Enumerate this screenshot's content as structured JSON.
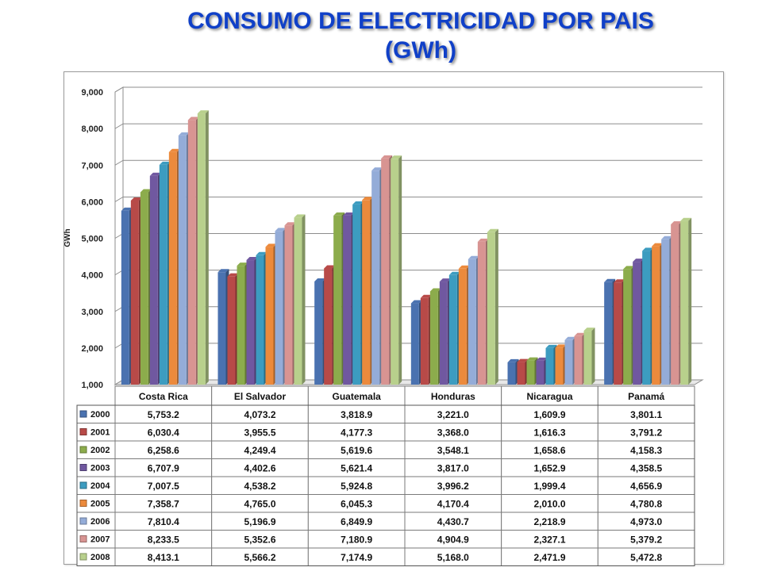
{
  "title_line1": "CONSUMO DE ELECTRICIDAD POR PAIS",
  "title_line2": "(GWh)",
  "chart_data": {
    "type": "bar",
    "ylabel": "GWh",
    "ylim": [
      1000,
      9000
    ],
    "yticks": [
      "1,000",
      "2,000",
      "3,000",
      "4,000",
      "5,000",
      "6,000",
      "7,000",
      "8,000",
      "9,000"
    ],
    "yticks_values": [
      1000,
      2000,
      3000,
      4000,
      5000,
      6000,
      7000,
      8000,
      9000
    ],
    "grid": true,
    "legend": "data-table",
    "categories": [
      "Costa Rica",
      "El Salvador",
      "Guatemala",
      "Honduras",
      "Nicaragua",
      "Panamá"
    ],
    "series": [
      {
        "name": "2000",
        "color": "#4a72b0",
        "values": [
          5753.2,
          4073.2,
          3818.9,
          3221.0,
          1609.9,
          3801.1
        ],
        "labels": [
          "5,753.2",
          "4,073.2",
          "3,818.9",
          "3,221.0",
          "1,609.9",
          "3,801.1"
        ]
      },
      {
        "name": "2001",
        "color": "#b84a48",
        "values": [
          6030.4,
          3955.5,
          4177.3,
          3368.0,
          1616.3,
          3791.2
        ],
        "labels": [
          "6,030.4",
          "3,955.5",
          "4,177.3",
          "3,368.0",
          "1,616.3",
          "3,791.2"
        ]
      },
      {
        "name": "2002",
        "color": "#8cac4c",
        "values": [
          6258.6,
          4249.4,
          5619.6,
          3548.1,
          1658.6,
          4158.3
        ],
        "labels": [
          "6,258.6",
          "4,249.4",
          "5,619.6",
          "3,548.1",
          "1,658.6",
          "4,158.3"
        ]
      },
      {
        "name": "2003",
        "color": "#7058a0",
        "values": [
          6707.9,
          4402.6,
          5621.4,
          3817.0,
          1652.9,
          4358.5
        ],
        "labels": [
          "6,707.9",
          "4,402.6",
          "5,621.4",
          "3,817.0",
          "1,652.9",
          "4,358.5"
        ]
      },
      {
        "name": "2004",
        "color": "#3c9cc0",
        "values": [
          7007.5,
          4538.2,
          5924.8,
          3996.2,
          1999.4,
          4656.9
        ],
        "labels": [
          "7,007.5",
          "4,538.2",
          "5,924.8",
          "3,996.2",
          "1,999.4",
          "4,656.9"
        ]
      },
      {
        "name": "2005",
        "color": "#ec8a3c",
        "values": [
          7358.7,
          4765.0,
          6045.3,
          4170.4,
          2010.0,
          4780.8
        ],
        "labels": [
          "7,358.7",
          "4,765.0",
          "6,045.3",
          "4,170.4",
          "2,010.0",
          "4,780.8"
        ]
      },
      {
        "name": "2006",
        "color": "#94acd8",
        "values": [
          7810.4,
          5196.9,
          6849.9,
          4430.7,
          2218.9,
          4973.0
        ],
        "labels": [
          "7,810.4",
          "5,196.9",
          "6,849.9",
          "4,430.7",
          "2,218.9",
          "4,973.0"
        ]
      },
      {
        "name": "2007",
        "color": "#d89492",
        "values": [
          8233.5,
          5352.6,
          7180.9,
          4904.9,
          2327.1,
          5379.2
        ],
        "labels": [
          "8,233.5",
          "5,352.6",
          "7,180.9",
          "4,904.9",
          "2,327.1",
          "5,379.2"
        ]
      },
      {
        "name": "2008",
        "color": "#b8d08c",
        "values": [
          8413.1,
          5566.2,
          7174.9,
          5168.0,
          2471.9,
          5472.8
        ],
        "labels": [
          "8,413.1",
          "5,566.2",
          "7,174.9",
          "5,168.0",
          "2,471.9",
          "5,472.8"
        ]
      }
    ]
  }
}
